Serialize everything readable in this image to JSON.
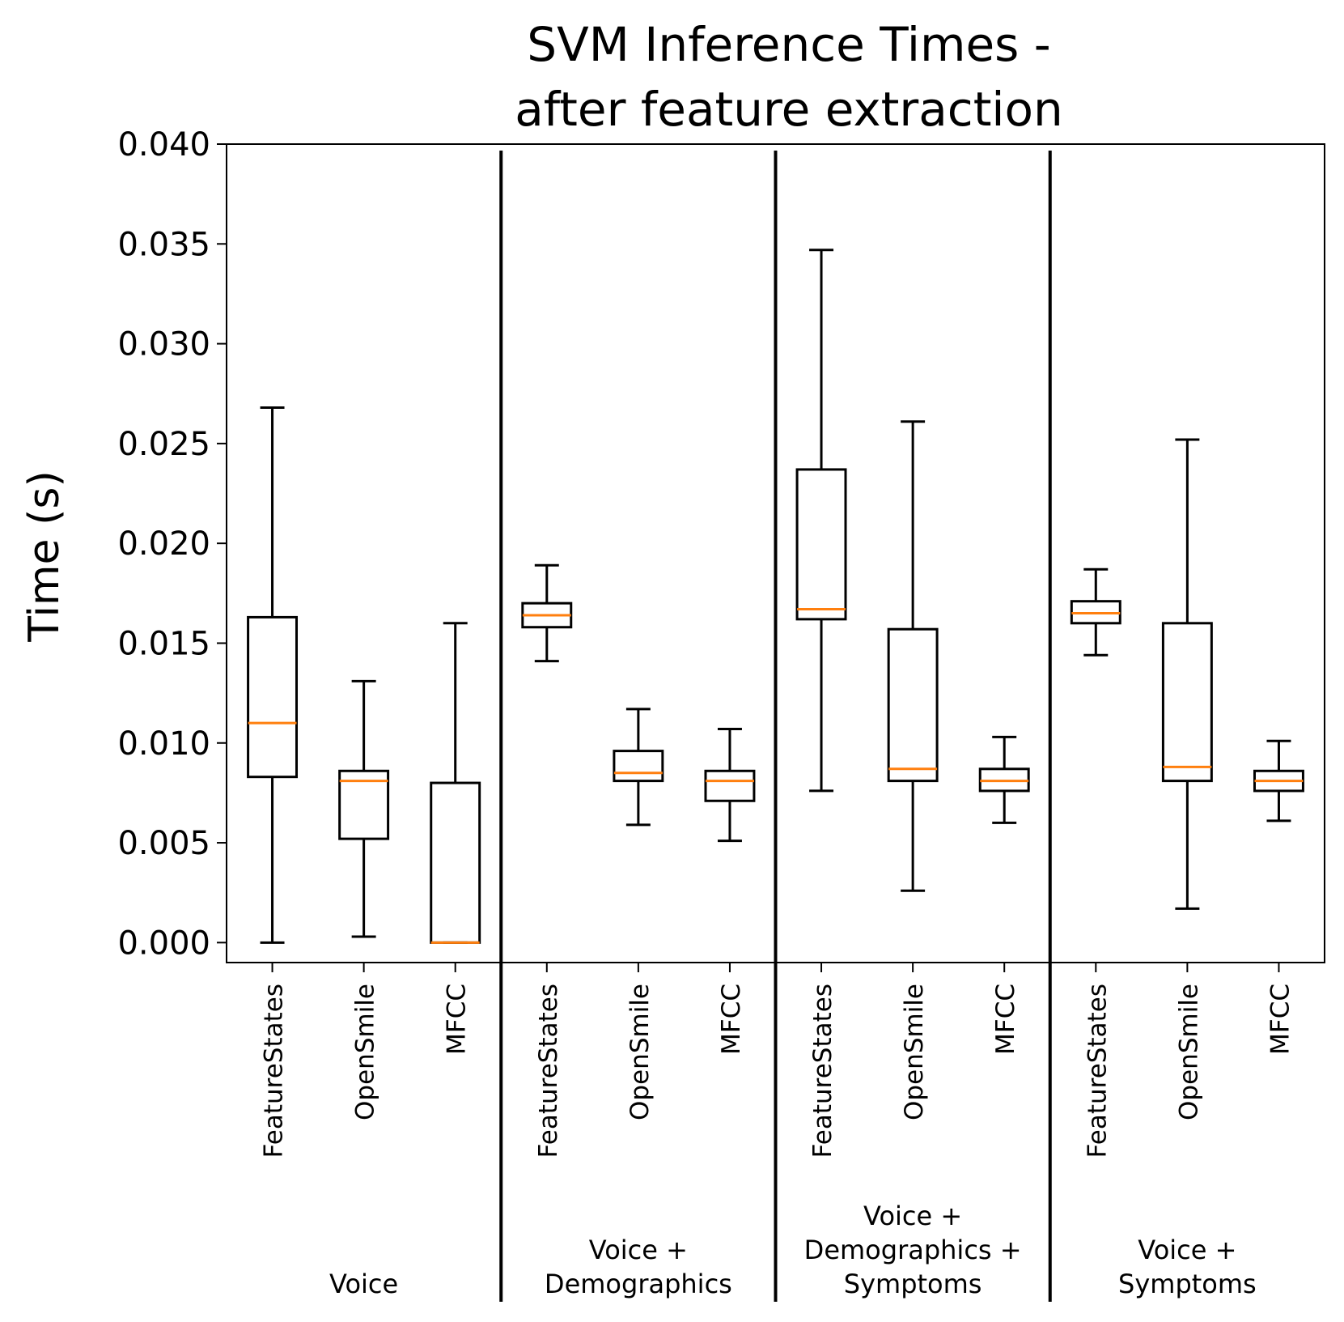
{
  "chart_data": {
    "type": "box",
    "title": [
      "SVM Inference Times -",
      "after feature extraction"
    ],
    "ylabel": "Time (s)",
    "ylim": [
      -0.001,
      0.04
    ],
    "yticks": [
      "0.000",
      "0.005",
      "0.010",
      "0.015",
      "0.020",
      "0.025",
      "0.030",
      "0.035",
      "0.040"
    ],
    "ytick_values": [
      0.0,
      0.005,
      0.01,
      0.015,
      0.02,
      0.025,
      0.03,
      0.035,
      0.04
    ],
    "groups": [
      {
        "label": [
          "Voice"
        ],
        "boxes": [
          {
            "category": "FeatureStates",
            "whislo": 0.0,
            "q1": 0.0083,
            "med": 0.011,
            "q3": 0.0163,
            "whishi": 0.0268
          },
          {
            "category": "OpenSmile",
            "whislo": 0.0003,
            "q1": 0.0052,
            "med": 0.0081,
            "q3": 0.0086,
            "whishi": 0.0131
          },
          {
            "category": "MFCC",
            "whislo": 0.0,
            "q1": 0.0,
            "med": 0.0,
            "q3": 0.008,
            "whishi": 0.016
          }
        ]
      },
      {
        "label": [
          "Voice +",
          "Demographics"
        ],
        "boxes": [
          {
            "category": "FeatureStates",
            "whislo": 0.0141,
            "q1": 0.0158,
            "med": 0.0164,
            "q3": 0.017,
            "whishi": 0.0189
          },
          {
            "category": "OpenSmile",
            "whislo": 0.0059,
            "q1": 0.0081,
            "med": 0.0085,
            "q3": 0.0096,
            "whishi": 0.0117
          },
          {
            "category": "MFCC",
            "whislo": 0.0051,
            "q1": 0.0071,
            "med": 0.0081,
            "q3": 0.0086,
            "whishi": 0.0107
          }
        ]
      },
      {
        "label": [
          "Voice +",
          "Demographics +",
          "Symptoms"
        ],
        "boxes": [
          {
            "category": "FeatureStates",
            "whislo": 0.0076,
            "q1": 0.0162,
            "med": 0.0167,
            "q3": 0.0237,
            "whishi": 0.0347
          },
          {
            "category": "OpenSmile",
            "whislo": 0.0026,
            "q1": 0.0081,
            "med": 0.0087,
            "q3": 0.0157,
            "whishi": 0.0261
          },
          {
            "category": "MFCC",
            "whislo": 0.006,
            "q1": 0.0076,
            "med": 0.0081,
            "q3": 0.0087,
            "whishi": 0.0103
          }
        ]
      },
      {
        "label": [
          "Voice +",
          "Symptoms"
        ],
        "boxes": [
          {
            "category": "FeatureStates",
            "whislo": 0.0144,
            "q1": 0.016,
            "med": 0.0165,
            "q3": 0.0171,
            "whishi": 0.0187
          },
          {
            "category": "OpenSmile",
            "whislo": 0.0017,
            "q1": 0.0081,
            "med": 0.0088,
            "q3": 0.016,
            "whishi": 0.0252
          },
          {
            "category": "MFCC",
            "whislo": 0.0061,
            "q1": 0.0076,
            "med": 0.0081,
            "q3": 0.0086,
            "whishi": 0.0101
          }
        ]
      }
    ],
    "colors": {
      "box": "#000000",
      "median": "#ff7f0e",
      "separator": "#000000"
    },
    "grid": false
  }
}
